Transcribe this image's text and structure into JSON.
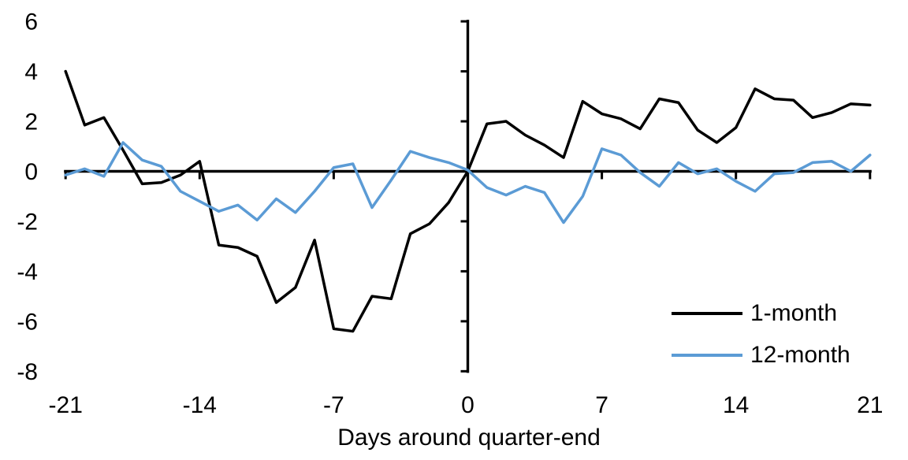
{
  "chart_data": {
    "type": "line",
    "title": "",
    "xlabel": "Days around quarter-end",
    "ylabel": "",
    "xlim": [
      -21,
      21
    ],
    "ylim": [
      -8,
      6
    ],
    "grid": false,
    "legend_position": "lower-right",
    "axis_color": "#000000",
    "x_ticks": [
      -21,
      -14,
      -7,
      0,
      7,
      14,
      21
    ],
    "y_ticks": [
      6,
      4,
      2,
      0,
      -2,
      -4,
      -6,
      -8
    ],
    "x": [
      -21,
      -20,
      -19,
      -18,
      -17,
      -16,
      -15,
      -14,
      -13,
      -12,
      -11,
      -10,
      -9,
      -8,
      -7,
      -6,
      -5,
      -4,
      -3,
      -2,
      -1,
      0,
      1,
      2,
      3,
      4,
      5,
      6,
      7,
      8,
      9,
      10,
      11,
      12,
      13,
      14,
      15,
      16,
      17,
      18,
      19,
      20,
      21
    ],
    "series": [
      {
        "name": "1-month",
        "color": "#000000",
        "values": [
          4.0,
          1.85,
          2.15,
          0.85,
          -0.5,
          -0.45,
          -0.15,
          0.4,
          -2.95,
          -3.05,
          -3.4,
          -5.25,
          -4.65,
          -2.75,
          -6.3,
          -6.4,
          -5.0,
          -5.1,
          -2.5,
          -2.1,
          -1.25,
          0.0,
          1.9,
          2.0,
          1.45,
          1.05,
          0.55,
          2.8,
          2.3,
          2.1,
          1.7,
          2.9,
          2.75,
          1.65,
          1.15,
          1.75,
          3.3,
          2.9,
          2.85,
          2.15,
          2.35,
          2.7,
          2.65
        ]
      },
      {
        "name": "12-month",
        "color": "#5B9BD5",
        "values": [
          -0.15,
          0.1,
          -0.2,
          1.15,
          0.45,
          0.2,
          -0.8,
          -1.2,
          -1.6,
          -1.35,
          -1.95,
          -1.1,
          -1.65,
          -0.8,
          0.15,
          0.3,
          -1.45,
          -0.35,
          0.8,
          0.55,
          0.35,
          0.05,
          -0.65,
          -0.95,
          -0.6,
          -0.85,
          -2.05,
          -1.0,
          0.9,
          0.65,
          -0.05,
          -0.6,
          0.35,
          -0.1,
          0.1,
          -0.4,
          -0.8,
          -0.1,
          -0.05,
          0.35,
          0.4,
          0.0,
          0.65
        ]
      }
    ]
  }
}
